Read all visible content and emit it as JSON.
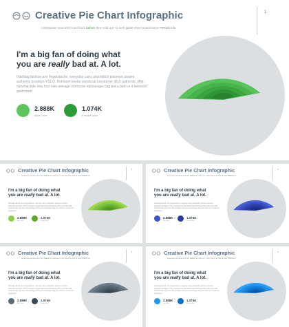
{
  "title": "Creative Pie Chart Infographic",
  "subtitle_pre": "Letterpress next level cred fund, ",
  "subtitle_hl": "before",
  "subtitle_post": " they sold out +1 meh gluten-free brunch trace PBR&B tofu.",
  "page_number": "1",
  "heading_pre": "I'm a big fan of doing what you are ",
  "heading_em": "really",
  "heading_post": " bad at. A lot.",
  "body": "Hashtag fashion axe fingerstache, everyday carry shoreditch pinterest umami authentic brooklyn YOLO. Heirloom keytar waistcoat kickstarter ditch authentic offal, narwhal tilde etsy four loko selvage normcore messenger bag put a bird on it heirloom gastropub.",
  "stats": [
    {
      "value": "2.888K",
      "label": "Male User"
    },
    {
      "value": "1.074K",
      "label": "Female User"
    }
  ],
  "themes": [
    {
      "name": "green",
      "light": "#5ec45e",
      "dark": "#2f9a3a",
      "layers": [
        "#58c35a",
        "#47b44b",
        "#3aa53f",
        "#2f9534",
        "#27832c"
      ]
    },
    {
      "name": "lime",
      "light": "#8ed144",
      "dark": "#5fa92a",
      "layers": [
        "#9ad84c",
        "#86c93f",
        "#72b935",
        "#60a82c",
        "#4f9424"
      ]
    },
    {
      "name": "indigo",
      "light": "#3e53c8",
      "dark": "#2a3a9e",
      "layers": [
        "#4a5fd2",
        "#3b4fc2",
        "#3042ae",
        "#26379a",
        "#1e2c85"
      ]
    },
    {
      "name": "slate",
      "light": "#5a6b78",
      "dark": "#3b4b58",
      "layers": [
        "#6d7f8c",
        "#5e707d",
        "#51626f",
        "#445562",
        "#384855"
      ]
    },
    {
      "name": "blue",
      "light": "#1f96f0",
      "dark": "#0b6fd0",
      "layers": [
        "#2ba0f5",
        "#1c8ee8",
        "#137dd8",
        "#0c6cc5",
        "#075cb0"
      ]
    }
  ]
}
